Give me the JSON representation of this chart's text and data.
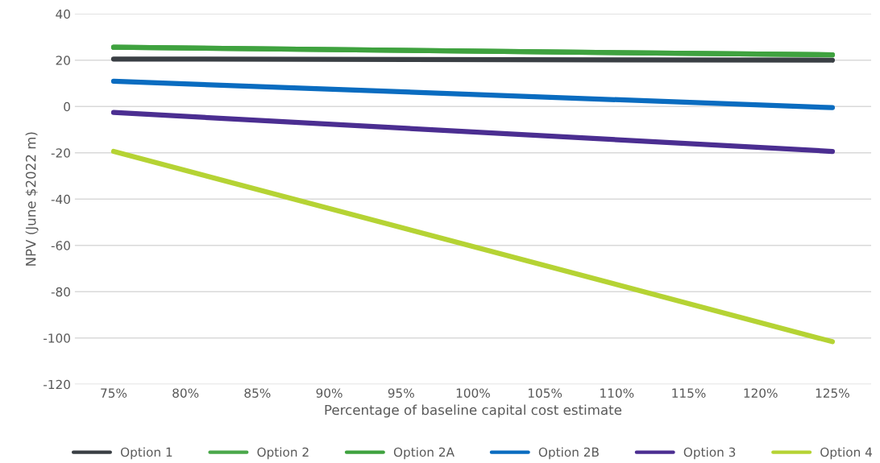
{
  "chart_data": {
    "type": "line",
    "xlabel": "Percentage of baseline capital cost estimate",
    "ylabel": "NPV (June $2022 m)",
    "x": [
      75,
      125
    ],
    "xlim": [
      72.3,
      127.7
    ],
    "xticks": [
      {
        "value": 75,
        "label": "75%"
      },
      {
        "value": 80,
        "label": "80%"
      },
      {
        "value": 85,
        "label": "85%"
      },
      {
        "value": 90,
        "label": "90%"
      },
      {
        "value": 95,
        "label": "95%"
      },
      {
        "value": 100,
        "label": "100%"
      },
      {
        "value": 105,
        "label": "105%"
      },
      {
        "value": 110,
        "label": "110%"
      },
      {
        "value": 115,
        "label": "115%"
      },
      {
        "value": 120,
        "label": "120%"
      },
      {
        "value": 125,
        "label": "125%"
      }
    ],
    "ylim": [
      -120,
      40
    ],
    "yticks": [
      -120,
      -100,
      -80,
      -60,
      -40,
      -20,
      0,
      20,
      40
    ],
    "grid": "y",
    "legend": "bottom",
    "marker": "none",
    "line_style": "solid",
    "series": [
      {
        "name": "Option 1",
        "color": "#3a3f44",
        "values": [
          20.5,
          20
        ]
      },
      {
        "name": "Option 2",
        "color": "#4aa84a",
        "values": [
          25.6,
          22.3
        ]
      },
      {
        "name": "Option 2A",
        "color": "#3fa23f",
        "values": [
          25.6,
          22.3
        ]
      },
      {
        "name": "Option 2B",
        "color": "#0a6cc0",
        "values": [
          10.9,
          -0.5
        ]
      },
      {
        "name": "Option 3",
        "color": "#4b2e91",
        "values": [
          -2.6,
          -19.4
        ]
      },
      {
        "name": "Option 4",
        "color": "#b5d334",
        "values": [
          -19.4,
          -101.6
        ]
      }
    ]
  }
}
